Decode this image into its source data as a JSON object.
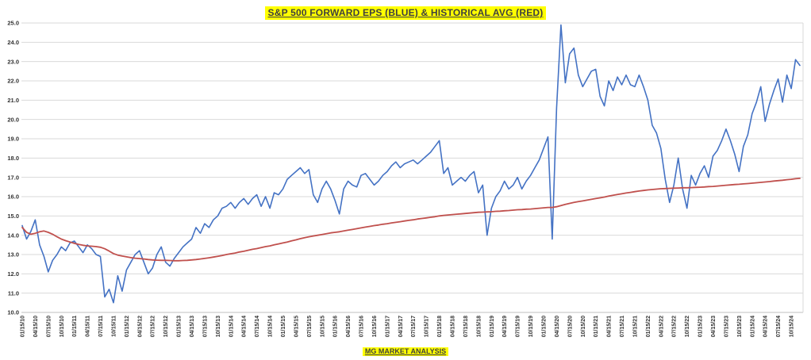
{
  "title": "S&P 500 FORWARD EPS (BLUE) & HISTORICAL AVG (RED)",
  "footer": "MG MARKET ANALYSIS",
  "colors": {
    "highlight": "#FFFF00",
    "title_text": "#3f3f3f",
    "blue_series": "#4472C4",
    "red_series": "#C0504D",
    "gridline": "#D9D9D9",
    "axis_line": "#BFBFBF",
    "tick_text": "#333333"
  },
  "chart_data": {
    "type": "line",
    "title": "S&P 500 FORWARD EPS (BLUE) & HISTORICAL AVG (RED)",
    "xlabel": "",
    "ylabel": "",
    "ylim": [
      10.0,
      25.0
    ],
    "ytick_step": 1.0,
    "grid": true,
    "legend_position": "none (colors referenced in title)",
    "x_tick_labels": [
      "01/15/10",
      "04/15/10",
      "07/15/10",
      "10/15/10",
      "01/15/11",
      "04/15/11",
      "07/15/11",
      "10/15/11",
      "01/15/12",
      "04/15/12",
      "07/15/12",
      "10/15/12",
      "01/15/13",
      "04/15/13",
      "07/15/13",
      "10/15/13",
      "01/15/14",
      "04/15/14",
      "07/15/14",
      "10/15/14",
      "01/15/15",
      "04/15/15",
      "07/15/15",
      "10/15/15",
      "01/15/16",
      "04/15/16",
      "07/15/16",
      "10/15/16",
      "01/15/17",
      "04/15/17",
      "07/15/17",
      "10/15/17",
      "01/15/18",
      "04/15/18",
      "07/15/18",
      "10/15/18",
      "01/15/19",
      "04/15/19",
      "07/15/19",
      "10/15/19",
      "01/15/20",
      "04/15/20",
      "07/15/20",
      "10/15/20",
      "01/15/21",
      "04/15/21",
      "07/15/21",
      "10/15/21",
      "01/15/22",
      "04/15/22",
      "07/15/22",
      "10/15/22",
      "01/15/23",
      "04/15/23",
      "07/15/23",
      "10/15/23",
      "01/15/24",
      "04/15/24",
      "07/15/24",
      "10/15/24"
    ],
    "x_resolution": "monthly points, Jan 2010 - Dec 2024 (ticks shown quarterly)",
    "series": [
      {
        "name": "S&P 500 Forward EPS",
        "color": "#4472C4",
        "values": [
          14.5,
          13.8,
          14.2,
          14.8,
          13.5,
          12.9,
          12.1,
          12.7,
          13.0,
          13.4,
          13.2,
          13.6,
          13.7,
          13.4,
          13.1,
          13.5,
          13.3,
          13.0,
          12.9,
          10.8,
          11.2,
          10.5,
          11.9,
          11.1,
          12.2,
          12.6,
          13.0,
          13.2,
          12.6,
          12.0,
          12.3,
          13.0,
          13.4,
          12.6,
          12.4,
          12.8,
          13.1,
          13.4,
          13.6,
          13.8,
          14.4,
          14.1,
          14.6,
          14.4,
          14.8,
          15.0,
          15.4,
          15.5,
          15.7,
          15.4,
          15.7,
          15.9,
          15.6,
          15.9,
          16.1,
          15.5,
          16.0,
          15.4,
          16.2,
          16.1,
          16.4,
          16.9,
          17.1,
          17.3,
          17.5,
          17.2,
          17.4,
          16.1,
          15.7,
          16.4,
          16.8,
          16.4,
          15.8,
          15.1,
          16.4,
          16.8,
          16.6,
          16.5,
          17.1,
          17.2,
          16.9,
          16.6,
          16.8,
          17.1,
          17.3,
          17.6,
          17.8,
          17.5,
          17.7,
          17.8,
          17.9,
          17.7,
          17.9,
          18.1,
          18.3,
          18.6,
          18.9,
          17.2,
          17.5,
          16.6,
          16.8,
          17.0,
          16.8,
          17.1,
          17.3,
          16.2,
          16.6,
          14.0,
          15.4,
          16.0,
          16.3,
          16.8,
          16.4,
          16.6,
          17.0,
          16.4,
          16.8,
          17.1,
          17.5,
          17.9,
          18.5,
          19.1,
          13.8,
          20.6,
          24.9,
          21.9,
          23.4,
          23.7,
          22.3,
          21.7,
          22.1,
          22.5,
          22.6,
          21.2,
          20.7,
          22.0,
          21.5,
          22.2,
          21.8,
          22.3,
          21.8,
          21.7,
          22.3,
          21.7,
          21.0,
          19.7,
          19.3,
          18.5,
          16.9,
          15.7,
          16.6,
          18.0,
          16.4,
          15.4,
          17.1,
          16.6,
          17.2,
          17.6,
          17.0,
          18.1,
          18.4,
          18.9,
          19.5,
          18.9,
          18.2,
          17.3,
          18.6,
          19.2,
          20.3,
          20.9,
          21.7,
          19.9,
          20.8,
          21.5,
          22.1,
          20.9,
          22.3,
          21.6,
          23.1,
          22.8
        ]
      },
      {
        "name": "Historical Avg",
        "color": "#C0504D",
        "values": [
          14.4,
          14.15,
          14.05,
          14.1,
          14.18,
          14.22,
          14.15,
          14.05,
          13.92,
          13.8,
          13.72,
          13.65,
          13.58,
          13.52,
          13.48,
          13.45,
          13.43,
          13.41,
          13.38,
          13.3,
          13.18,
          13.05,
          12.97,
          12.92,
          12.88,
          12.84,
          12.81,
          12.79,
          12.77,
          12.74,
          12.72,
          12.71,
          12.7,
          12.7,
          12.69,
          12.68,
          12.68,
          12.69,
          12.7,
          12.72,
          12.74,
          12.77,
          12.8,
          12.83,
          12.87,
          12.91,
          12.95,
          13.0,
          13.04,
          13.08,
          13.13,
          13.17,
          13.22,
          13.27,
          13.31,
          13.36,
          13.41,
          13.45,
          13.5,
          13.55,
          13.6,
          13.65,
          13.71,
          13.76,
          13.82,
          13.87,
          13.92,
          13.96,
          14.0,
          14.04,
          14.08,
          14.12,
          14.15,
          14.18,
          14.22,
          14.26,
          14.3,
          14.34,
          14.38,
          14.42,
          14.46,
          14.5,
          14.53,
          14.57,
          14.6,
          14.64,
          14.67,
          14.7,
          14.74,
          14.77,
          14.8,
          14.84,
          14.87,
          14.9,
          14.93,
          14.96,
          15.0,
          15.03,
          15.05,
          15.07,
          15.09,
          15.11,
          15.13,
          15.15,
          15.17,
          15.19,
          15.2,
          15.21,
          15.22,
          15.24,
          15.25,
          15.27,
          15.28,
          15.3,
          15.32,
          15.33,
          15.35,
          15.36,
          15.38,
          15.4,
          15.42,
          15.44,
          15.44,
          15.48,
          15.54,
          15.6,
          15.65,
          15.7,
          15.74,
          15.78,
          15.82,
          15.86,
          15.9,
          15.94,
          15.98,
          16.03,
          16.07,
          16.11,
          16.15,
          16.19,
          16.22,
          16.26,
          16.29,
          16.32,
          16.35,
          16.37,
          16.39,
          16.41,
          16.42,
          16.43,
          16.44,
          16.45,
          16.46,
          16.46,
          16.47,
          16.48,
          16.49,
          16.5,
          16.52,
          16.53,
          16.55,
          16.57,
          16.59,
          16.61,
          16.63,
          16.64,
          16.66,
          16.68,
          16.7,
          16.72,
          16.74,
          16.76,
          16.78,
          16.81,
          16.83,
          16.85,
          16.88,
          16.9,
          16.93,
          16.95
        ]
      }
    ]
  }
}
